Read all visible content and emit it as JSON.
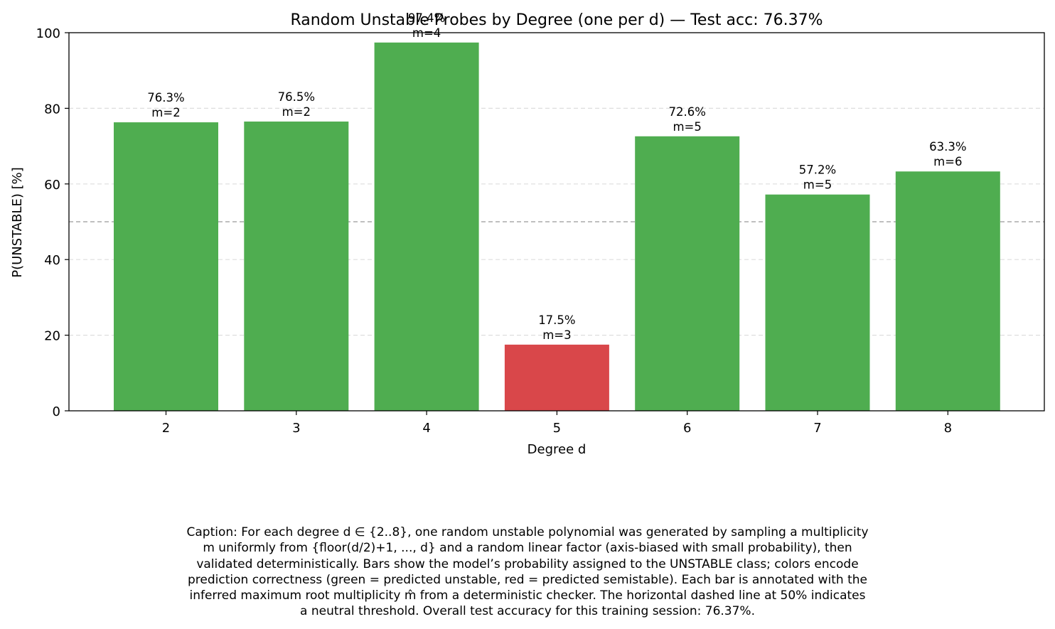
{
  "chart_data": {
    "type": "bar",
    "title": "Random Unstable Probes by Degree (one per d) — Test acc: 76.37%",
    "xlabel": "Degree d",
    "ylabel": "P(UNSTABLE) [%]",
    "ylim": [
      0,
      100
    ],
    "yticks": [
      "0",
      "20",
      "40",
      "60",
      "80",
      "100"
    ],
    "categories": [
      "2",
      "3",
      "4",
      "5",
      "6",
      "7",
      "8"
    ],
    "values": [
      76.3,
      76.5,
      97.4,
      17.5,
      72.6,
      57.2,
      63.3
    ],
    "value_labels": [
      "76.3%",
      "76.5%",
      "97.4%",
      "17.5%",
      "72.6%",
      "57.2%",
      "63.3%"
    ],
    "multiplicity_labels": [
      "m=2",
      "m=2",
      "m=4",
      "m=3",
      "m=5",
      "m=5",
      "m=6"
    ],
    "correct": [
      true,
      true,
      true,
      false,
      true,
      true,
      true
    ],
    "threshold": 50,
    "grid": true,
    "colors": {
      "correct": "#4fad50",
      "incorrect": "#d9474a",
      "threshold": "#aaaaaa",
      "grid": "#dddddd"
    }
  },
  "caption": "Caption: For each degree d ∈ {2..8}, one random unstable polynomial was generated by sampling a multiplicity\nm uniformly from {floor(d/2)+1, ..., d} and a random linear factor (axis-biased with small probability), then\nvalidated deterministically. Bars show the model’s probability assigned to the UNSTABLE class; colors encode\nprediction correctness (green = predicted unstable, red = predicted semistable). Each bar is annotated with the\ninferred maximum root multiplicity m̂ from a deterministic checker. The horizontal dashed line at 50% indicates\na neutral threshold. Overall test accuracy for this training session: 76.37%."
}
